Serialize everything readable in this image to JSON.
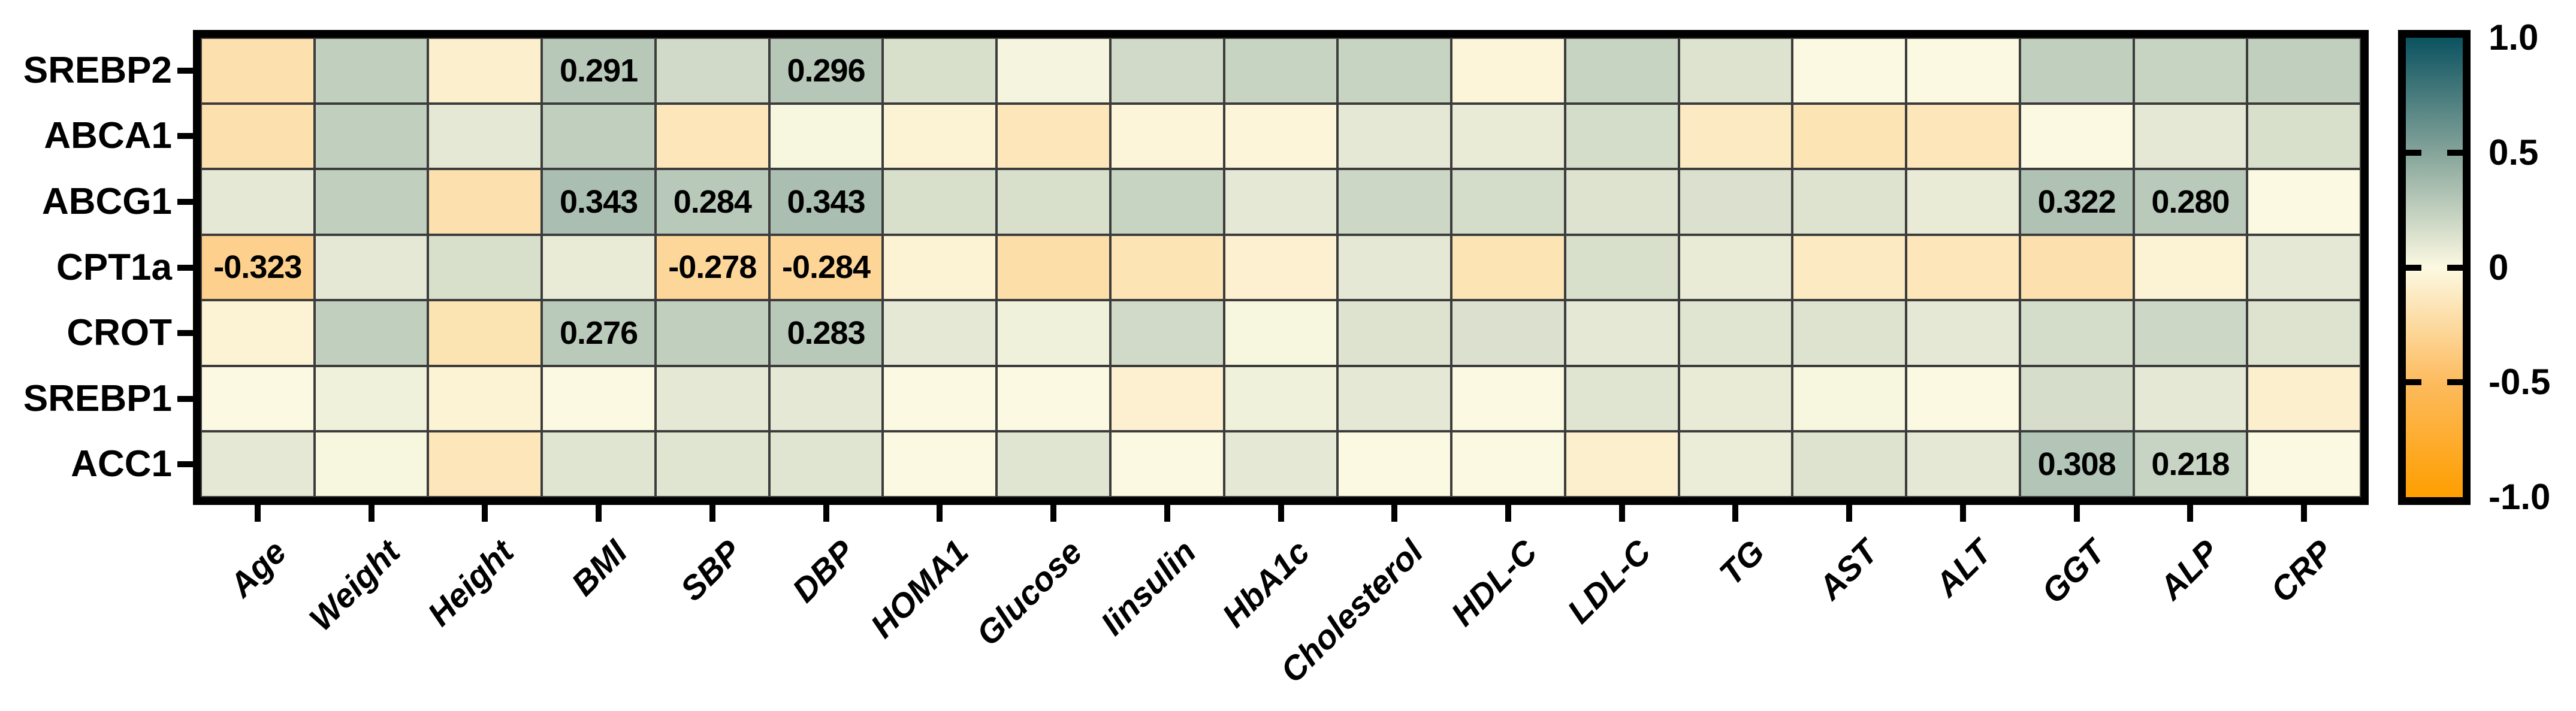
{
  "figure": {
    "kind": "correlation-heatmap",
    "background": "#ffffff",
    "border_color": "#000000",
    "grid_line_color": "#3c3c3c"
  },
  "chart_data": {
    "type": "heatmap",
    "rows": [
      "SREBP2",
      "ABCA1",
      "ABCG1",
      "CPT1a",
      "CROT",
      "SREBP1",
      "ACC1"
    ],
    "columns": [
      "Age",
      "Weight",
      "Height",
      "BMI",
      "SBP",
      "DBP",
      "HOMA1",
      "Glucose",
      "Iinsulin",
      "HbA1c",
      "Cholesterol",
      "HDL-C",
      "LDL-C",
      "TG",
      "AST",
      "ALT",
      "GGT",
      "ALP",
      "CRP"
    ],
    "values": [
      [
        -0.2,
        0.25,
        -0.08,
        0.291,
        0.18,
        0.296,
        0.15,
        0.03,
        0.18,
        0.22,
        0.22,
        -0.03,
        0.22,
        0.13,
        0.0,
        0.0,
        0.25,
        0.22,
        0.25
      ],
      [
        -0.2,
        0.25,
        0.1,
        0.25,
        -0.15,
        0.02,
        -0.05,
        -0.15,
        -0.03,
        -0.03,
        0.1,
        0.08,
        0.17,
        -0.12,
        -0.17,
        -0.15,
        0.0,
        0.1,
        0.15
      ],
      [
        0.1,
        0.25,
        -0.2,
        0.343,
        0.284,
        0.343,
        0.15,
        0.15,
        0.22,
        0.1,
        0.2,
        0.17,
        0.13,
        0.14,
        0.13,
        0.08,
        0.322,
        0.28,
        0.0
      ],
      [
        -0.323,
        0.1,
        0.15,
        0.08,
        -0.278,
        -0.284,
        -0.05,
        -0.22,
        -0.17,
        -0.07,
        0.1,
        -0.17,
        0.15,
        0.08,
        -0.12,
        -0.15,
        -0.2,
        -0.05,
        0.1
      ],
      [
        -0.05,
        0.25,
        -0.18,
        0.276,
        0.25,
        0.283,
        0.1,
        0.05,
        0.18,
        0.02,
        0.13,
        0.14,
        0.1,
        0.12,
        0.13,
        0.1,
        0.17,
        0.2,
        0.13
      ],
      [
        0.0,
        0.05,
        -0.05,
        0.0,
        0.1,
        0.1,
        0.0,
        0.0,
        -0.07,
        0.05,
        0.1,
        0.0,
        0.12,
        0.08,
        0.02,
        0.0,
        0.16,
        0.1,
        -0.08
      ],
      [
        0.1,
        0.02,
        -0.15,
        0.12,
        0.12,
        0.12,
        0.0,
        0.12,
        0.0,
        0.1,
        0.0,
        0.0,
        -0.08,
        0.07,
        0.13,
        0.1,
        0.308,
        0.218,
        0.0
      ]
    ],
    "labeled_cells": [
      {
        "row": "SREBP2",
        "column": "BMI",
        "row_index": 0,
        "col_index": 3,
        "text": "0.291"
      },
      {
        "row": "SREBP2",
        "column": "DBP",
        "row_index": 0,
        "col_index": 5,
        "text": "0.296"
      },
      {
        "row": "ABCG1",
        "column": "BMI",
        "row_index": 2,
        "col_index": 3,
        "text": "0.343"
      },
      {
        "row": "ABCG1",
        "column": "SBP",
        "row_index": 2,
        "col_index": 4,
        "text": "0.284"
      },
      {
        "row": "ABCG1",
        "column": "DBP",
        "row_index": 2,
        "col_index": 5,
        "text": "0.343"
      },
      {
        "row": "ABCG1",
        "column": "GGT",
        "row_index": 2,
        "col_index": 16,
        "text": "0.322"
      },
      {
        "row": "ABCG1",
        "column": "ALP",
        "row_index": 2,
        "col_index": 17,
        "text": "0.280"
      },
      {
        "row": "CPT1a",
        "column": "Age",
        "row_index": 3,
        "col_index": 0,
        "text": "-0.323"
      },
      {
        "row": "CPT1a",
        "column": "SBP",
        "row_index": 3,
        "col_index": 4,
        "text": "-0.278"
      },
      {
        "row": "CPT1a",
        "column": "DBP",
        "row_index": 3,
        "col_index": 5,
        "text": "-0.284"
      },
      {
        "row": "CROT",
        "column": "BMI",
        "row_index": 4,
        "col_index": 3,
        "text": "0.276"
      },
      {
        "row": "CROT",
        "column": "DBP",
        "row_index": 4,
        "col_index": 5,
        "text": "0.283"
      },
      {
        "row": "ACC1",
        "column": "GGT",
        "row_index": 6,
        "col_index": 16,
        "text": "0.308"
      },
      {
        "row": "ACC1",
        "column": "ALP",
        "row_index": 6,
        "col_index": 17,
        "text": "0.218"
      }
    ],
    "colorbar": {
      "position": "right",
      "min": -1.0,
      "max": 1.0,
      "tick_labels": [
        "1.0",
        "0.5",
        "0",
        "-0.5",
        "-1.0"
      ],
      "tick_values": [
        1.0,
        0.5,
        0,
        -0.5,
        -1.0
      ],
      "inner_tick_values": [
        0.5,
        0,
        -0.5
      ],
      "stops": [
        {
          "value": -1.0,
          "color": "#fe9e00"
        },
        {
          "value": -0.5,
          "color": "#fdbb5e"
        },
        {
          "value": 0.0,
          "color": "#fcf9e2"
        },
        {
          "value": 0.5,
          "color": "#85a49a"
        },
        {
          "value": 1.0,
          "color": "#0b5260"
        }
      ]
    },
    "x_tick_label_rotation_deg": -45,
    "legend_position": "right",
    "grid_on": true
  }
}
